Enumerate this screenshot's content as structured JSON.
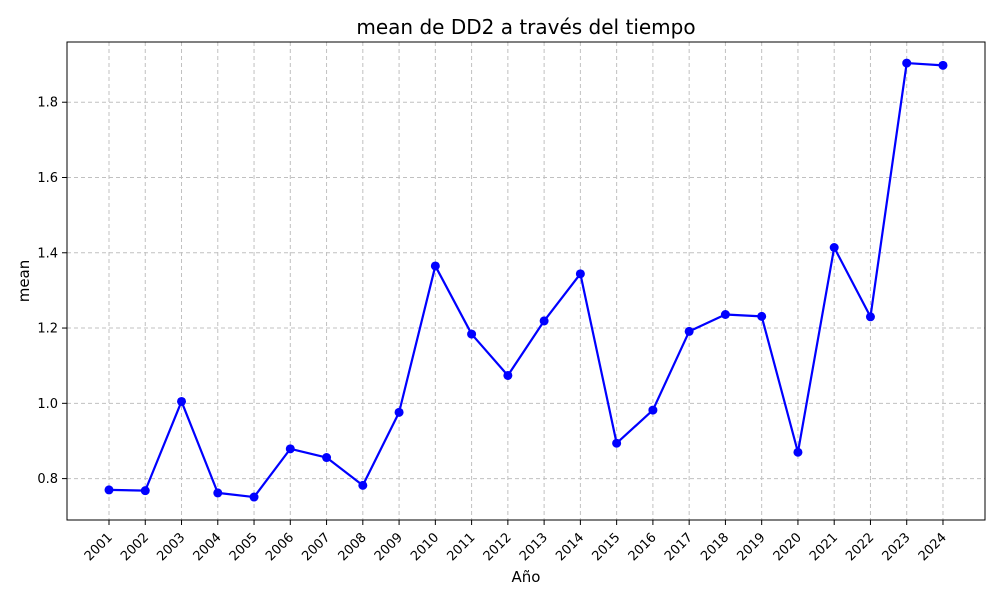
{
  "chart_data": {
    "type": "line",
    "title": "mean de DD2 a través del tiempo",
    "xlabel": "Año",
    "ylabel": "mean",
    "categories": [
      "2001",
      "2002",
      "2003",
      "2004",
      "2005",
      "2006",
      "2007",
      "2008",
      "2009",
      "2010",
      "2011",
      "2012",
      "2013",
      "2014",
      "2015",
      "2016",
      "2017",
      "2018",
      "2019",
      "2020",
      "2021",
      "2022",
      "2023",
      "2024"
    ],
    "series": [
      {
        "values": [
          0.77,
          0.768,
          1.005,
          0.762,
          0.751,
          0.879,
          0.856,
          0.782,
          0.976,
          1.365,
          1.184,
          1.074,
          1.219,
          1.344,
          0.894,
          0.982,
          1.191,
          1.236,
          1.231,
          0.87,
          1.414,
          1.23,
          1.904,
          1.898
        ],
        "color": "#0000ff"
      }
    ],
    "ylim": [
      0.69,
      1.96
    ],
    "yticks": [
      0.8,
      1.0,
      1.2,
      1.4,
      1.6,
      1.8
    ],
    "ytick_labels": [
      "0.8",
      "1.0",
      "1.2",
      "1.4",
      "1.6",
      "1.8"
    ],
    "grid": true,
    "grid_style": "dashed",
    "grid_color": "#c0c0c0"
  }
}
